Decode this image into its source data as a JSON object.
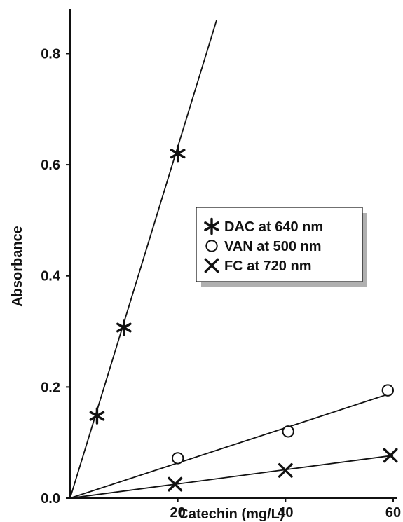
{
  "chart_data": {
    "type": "scatter",
    "xlabel": "Catechin (mg/L)",
    "ylabel": "Absorbance",
    "xlim": [
      0,
      60
    ],
    "ylim": [
      0,
      0.88
    ],
    "xticks": [
      20,
      40,
      60
    ],
    "xtick_labels": [
      "20",
      "40",
      "60"
    ],
    "yticks": [
      0.0,
      0.2,
      0.4,
      0.6,
      0.8
    ],
    "ytick_labels": [
      "0.0",
      "0.2",
      "0.4",
      "0.6",
      "0.8"
    ],
    "grid": false,
    "legend_position": "center-right",
    "series": [
      {
        "name": "DAC at 640 nm",
        "marker": "star",
        "x": [
          5,
          10,
          20
        ],
        "y": [
          0.148,
          0.307,
          0.62
        ],
        "fit_line": {
          "x": [
            0,
            27.2
          ],
          "y": [
            0,
            0.86
          ]
        }
      },
      {
        "name": "VAN at 500 nm",
        "marker": "circle",
        "x": [
          20,
          40.5,
          59
        ],
        "y": [
          0.072,
          0.12,
          0.194
        ],
        "fit_line": {
          "x": [
            0,
            60
          ],
          "y": [
            0,
            0.19
          ]
        }
      },
      {
        "name": "FC at 720 nm",
        "marker": "x",
        "x": [
          19.5,
          40,
          59.5
        ],
        "y": [
          0.025,
          0.05,
          0.077
        ],
        "fit_line": {
          "x": [
            0,
            60
          ],
          "y": [
            0,
            0.077
          ]
        }
      }
    ]
  }
}
